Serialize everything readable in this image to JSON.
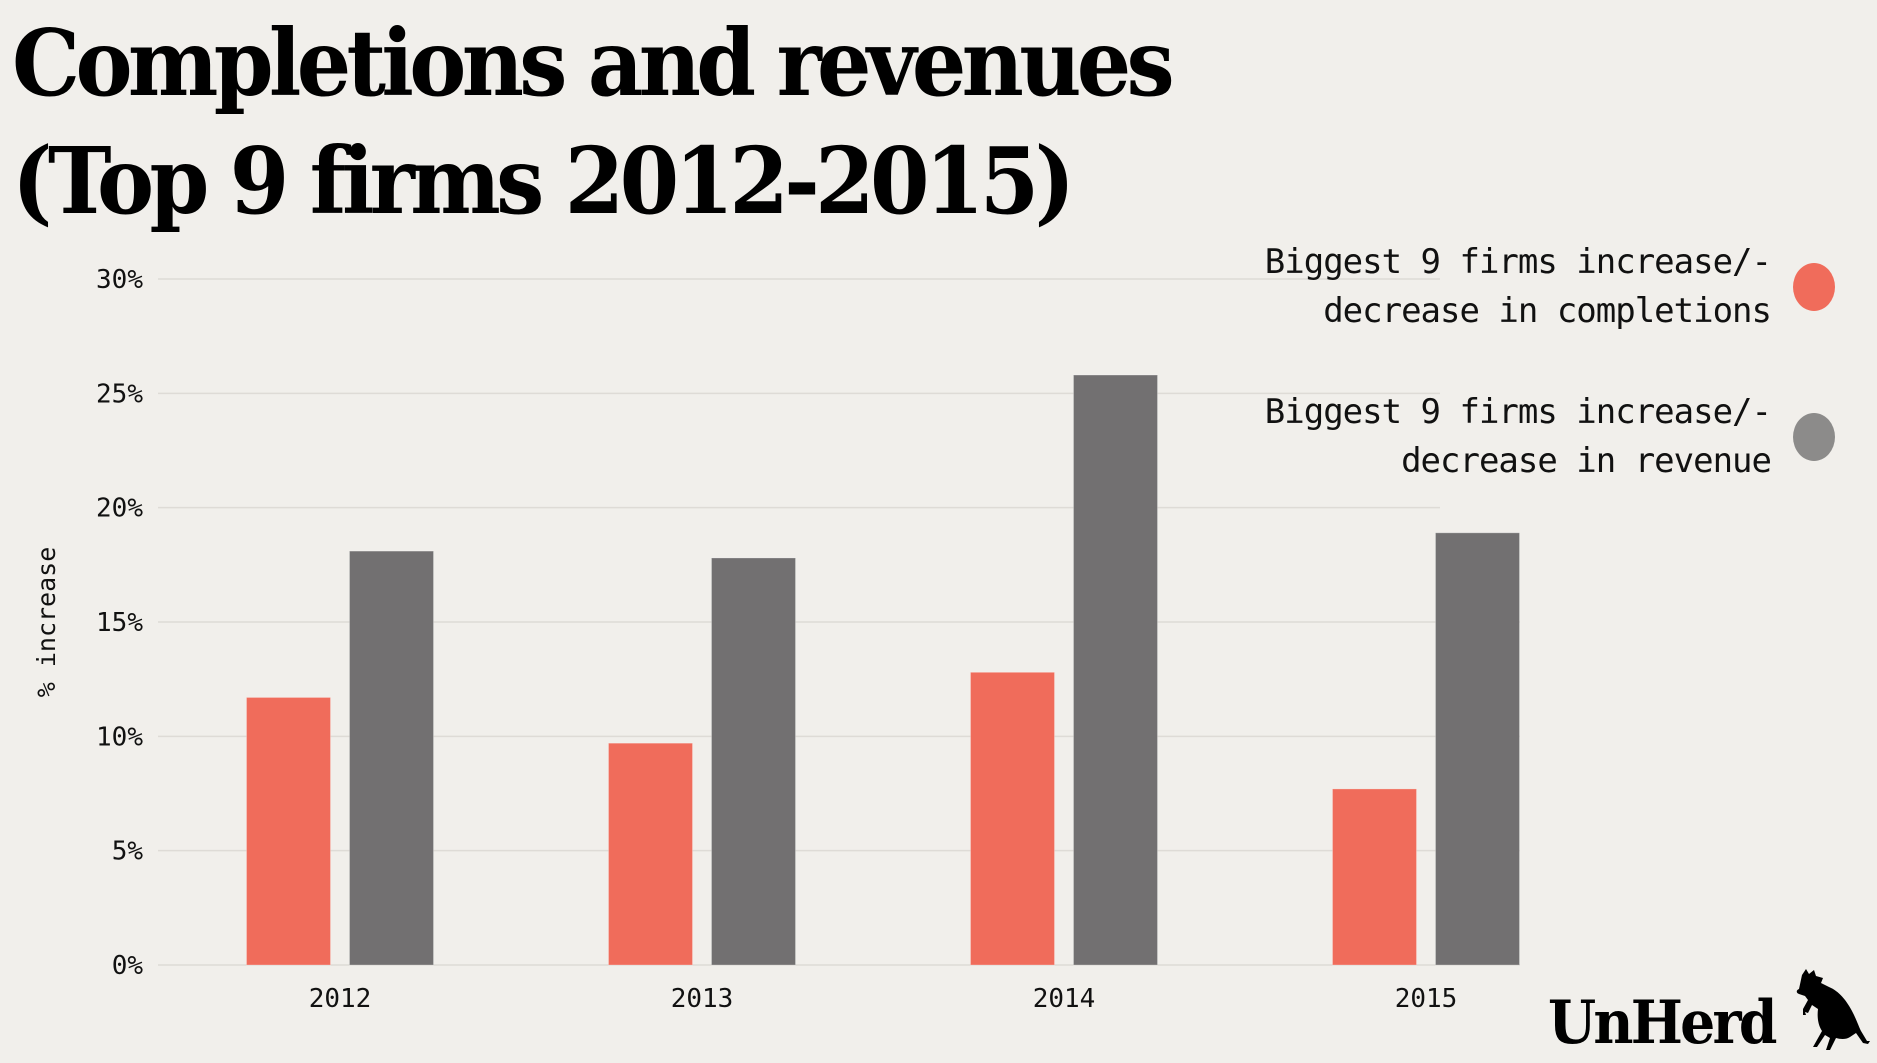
{
  "title": {
    "line1": "Completions and revenues",
    "line2": "(Top 9 firms 2012-2015)"
  },
  "colors": {
    "background": "#f1efeb",
    "completions": "#f06c5b",
    "revenue": "#727071",
    "revenue_legend": "#8c8b8a",
    "grid": "#dedbd6"
  },
  "legend": [
    {
      "line1": "Biggest 9 firms increase/-",
      "line2": "decrease in completions",
      "series": "completions"
    },
    {
      "line1": "Biggest 9 firms increase/-",
      "line2": "decrease in revenue",
      "series": "revenue"
    }
  ],
  "logo": {
    "text": "UnHerd",
    "icon": "cow-icon"
  },
  "chart_data": {
    "type": "bar",
    "title": "Completions and revenues (Top 9 firms 2012-2015)",
    "xlabel": "",
    "ylabel": "% increase",
    "categories": [
      "2012",
      "2013",
      "2014",
      "2015"
    ],
    "series": [
      {
        "name": "Biggest 9 firms increase/-decrease in completions",
        "key": "completions",
        "values": [
          11.7,
          9.7,
          12.8,
          7.7
        ]
      },
      {
        "name": "Biggest 9 firms increase/-decrease in revenue",
        "key": "revenue",
        "values": [
          18.1,
          17.8,
          25.8,
          18.9
        ]
      }
    ],
    "ylim": [
      0,
      30
    ],
    "yticks": [
      0,
      5,
      10,
      15,
      20,
      25,
      30
    ],
    "ytick_labels": [
      "0%",
      "5%",
      "10%",
      "15%",
      "20%",
      "25%",
      "30%"
    ],
    "grid": true,
    "legend_position": "top-right"
  }
}
